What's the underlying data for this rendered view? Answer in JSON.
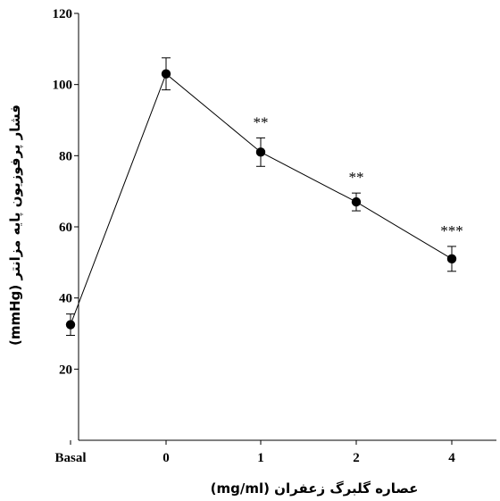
{
  "chart_data": {
    "type": "line",
    "xlabel": "عصاره گلبرگ زعفران (mg/ml)",
    "ylabel": "فشار پرفوزیون پایه مزانتر (mmHg)",
    "ylim": [
      0,
      120
    ],
    "yticks": [
      20,
      40,
      60,
      80,
      100,
      120
    ],
    "categories": [
      "Basal",
      "0",
      "1",
      "2",
      "4"
    ],
    "series": [
      {
        "values": [
          32.5,
          103,
          81,
          67,
          51
        ],
        "errors": [
          3,
          4.5,
          4,
          2.5,
          3.5
        ],
        "significance": [
          "",
          "",
          "**",
          "**",
          "***"
        ]
      }
    ],
    "grid": false,
    "legend": "none"
  }
}
